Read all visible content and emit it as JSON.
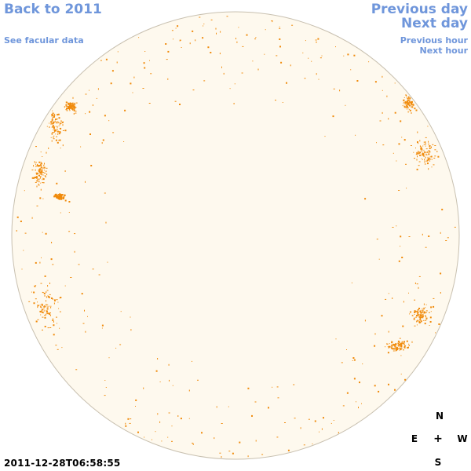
{
  "nav": {
    "back_label": "Back to 2011",
    "previous_day_label": "Previous day",
    "next_day_label": "Next day",
    "facular_label": "See facular data",
    "previous_hour_label": "Previous hour",
    "next_hour_label": "Next hour"
  },
  "timestamp": "2011-12-28T06:58:55",
  "compass": {
    "north": "N",
    "east": "E",
    "center": "+",
    "west": "W",
    "south": "S"
  },
  "colors": {
    "link": "#6f96db",
    "disk_fill": "#fef9ee",
    "disk_border": "#c8c0b0",
    "feature": "#f08a0a"
  }
}
